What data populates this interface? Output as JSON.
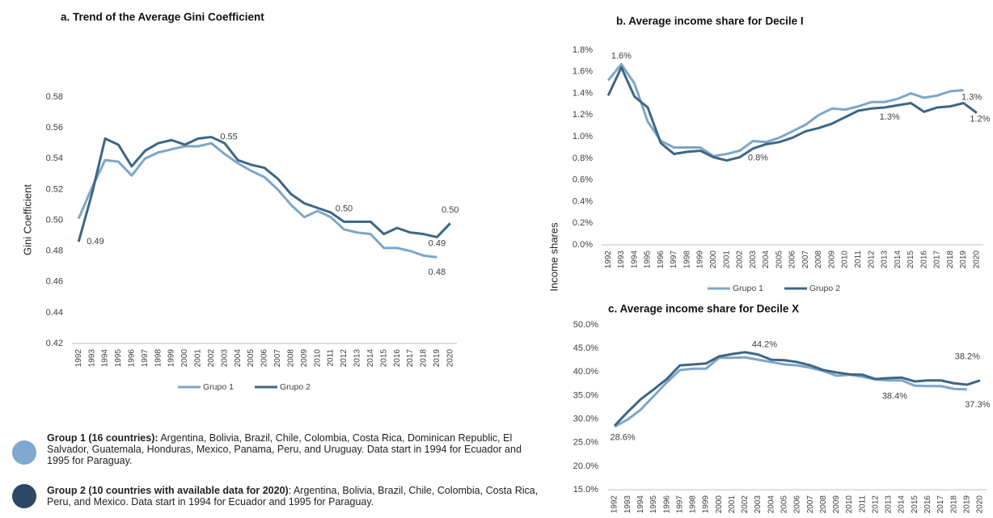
{
  "chart_data": [
    {
      "type": "line",
      "title": "a. Trend of the Average Gini Coefficient",
      "ylabel": "Gini Coefficient",
      "categories": [
        "1992",
        "1993",
        "1994",
        "1995",
        "1996",
        "1997",
        "1998",
        "1999",
        "2000",
        "2001",
        "2002",
        "2003",
        "2004",
        "2005",
        "2006",
        "2007",
        "2008",
        "2009",
        "2010",
        "2011",
        "2012",
        "2013",
        "2014",
        "2015",
        "2016",
        "2017",
        "2018",
        "2019",
        "2020"
      ],
      "series": [
        {
          "name": "Grupo 1",
          "color": "#7ea6c8",
          "values": [
            0.501,
            0.521,
            0.539,
            0.538,
            0.529,
            0.54,
            0.544,
            0.546,
            0.548,
            0.548,
            0.55,
            0.543,
            0.537,
            0.532,
            0.528,
            0.52,
            0.51,
            0.502,
            0.506,
            0.502,
            0.494,
            0.492,
            0.491,
            0.482,
            0.482,
            0.48,
            0.477,
            0.476,
            null
          ],
          "value_labels": [
            null,
            null,
            null,
            null,
            null,
            null,
            null,
            null,
            null,
            null,
            null,
            null,
            null,
            null,
            null,
            null,
            null,
            null,
            null,
            null,
            null,
            null,
            null,
            null,
            null,
            null,
            null,
            "0.48",
            null
          ]
        },
        {
          "name": "Grupo 2",
          "color": "#3e6685",
          "values": [
            0.486,
            0.517,
            0.553,
            0.549,
            0.535,
            0.545,
            0.55,
            0.552,
            0.549,
            0.553,
            0.554,
            0.55,
            0.539,
            0.536,
            0.534,
            0.527,
            0.517,
            0.511,
            0.508,
            0.505,
            0.499,
            0.499,
            0.499,
            0.491,
            0.495,
            0.492,
            0.491,
            0.489,
            0.498
          ],
          "value_labels": [
            "0.49",
            null,
            null,
            null,
            null,
            null,
            null,
            null,
            null,
            null,
            "0.55",
            null,
            null,
            null,
            null,
            null,
            null,
            null,
            null,
            null,
            "0.50",
            null,
            null,
            null,
            null,
            null,
            null,
            "0.49",
            "0.50"
          ]
        }
      ],
      "ylim": [
        0.42,
        0.58
      ],
      "yticks": [
        0.42,
        0.44,
        0.46,
        0.48,
        {
          "value": 0.5,
          "label": "0.50"
        },
        0.52,
        0.54,
        0.56,
        0.58
      ],
      "grid": false,
      "legend": "bottom"
    },
    {
      "type": "line",
      "title": "b. Average income share for Decile I",
      "ylabel": "Income shares",
      "categories": [
        "1992",
        "1993",
        "1994",
        "1995",
        "1996",
        "1997",
        "1998",
        "1999",
        "2000",
        "2001",
        "2002",
        "2003",
        "2004",
        "2005",
        "2006",
        "2007",
        "2008",
        "2009",
        "2010",
        "2011",
        "2012",
        "2013",
        "2014",
        "2015",
        "2016",
        "2017",
        "2018",
        "2019",
        "2020"
      ],
      "series": [
        {
          "name": "Grupo 1",
          "color": "#7ea6c8",
          "values": [
            1.52,
            1.67,
            1.49,
            1.14,
            0.96,
            0.9,
            0.9,
            0.9,
            0.82,
            0.84,
            0.87,
            0.96,
            0.95,
            0.99,
            1.05,
            1.11,
            1.2,
            1.26,
            1.25,
            1.28,
            1.32,
            1.32,
            1.35,
            1.4,
            1.36,
            1.38,
            1.42,
            1.43,
            null
          ]
        },
        {
          "name": "Grupo 2",
          "color": "#3e6685",
          "values": [
            1.38,
            1.64,
            1.37,
            1.27,
            0.94,
            0.84,
            0.86,
            0.87,
            0.81,
            0.78,
            0.81,
            0.89,
            0.93,
            0.95,
            0.99,
            1.05,
            1.08,
            1.12,
            1.18,
            1.24,
            1.26,
            1.27,
            1.29,
            1.31,
            1.23,
            1.27,
            1.28,
            1.31,
            1.22
          ],
          "value_labels": [
            null,
            "1.6%",
            null,
            null,
            null,
            null,
            null,
            null,
            null,
            null,
            "0.8%",
            null,
            null,
            null,
            null,
            null,
            null,
            null,
            null,
            null,
            "1.3%",
            null,
            null,
            null,
            null,
            null,
            null,
            "1.3%",
            "1.2%"
          ]
        }
      ],
      "ylim": [
        0,
        1.8
      ],
      "yticks": [
        {
          "value": 0,
          "label": "0.0%"
        },
        {
          "value": 0.2,
          "label": "0.2%"
        },
        {
          "value": 0.4,
          "label": "0.4%"
        },
        {
          "value": 0.6,
          "label": "0.6%"
        },
        {
          "value": 0.8,
          "label": "0.8%"
        },
        {
          "value": 1.0,
          "label": "1.0%"
        },
        {
          "value": 1.2,
          "label": "1.2%"
        },
        {
          "value": 1.4,
          "label": "1.4%"
        },
        {
          "value": 1.6,
          "label": "1.6%"
        },
        {
          "value": 1.8,
          "label": "1.8%"
        }
      ],
      "grid": false,
      "legend": "bottom"
    },
    {
      "type": "line",
      "title": "c. Average income share for Decile X",
      "categories": [
        "1992",
        "1993",
        "1994",
        "1995",
        "1996",
        "1997",
        "1998",
        "1999",
        "2000",
        "2001",
        "2002",
        "2003",
        "2004",
        "2005",
        "2006",
        "2007",
        "2008",
        "2009",
        "2010",
        "2011",
        "2012",
        "2013",
        "2014",
        "2015",
        "2016",
        "2017",
        "2018",
        "2019",
        "2020"
      ],
      "series": [
        {
          "name": "Grupo 1",
          "color": "#7ea6c8",
          "values": [
            28.4,
            29.9,
            32.0,
            34.9,
            37.8,
            40.4,
            40.7,
            40.7,
            43.0,
            43.0,
            43.1,
            42.6,
            42.1,
            41.6,
            41.4,
            40.9,
            40.2,
            39.2,
            39.4,
            39.0,
            38.4,
            38.2,
            38.2,
            37.1,
            37.0,
            37.0,
            36.4,
            36.3,
            null
          ],
          "value_labels": [
            null,
            null,
            null,
            null,
            null,
            null,
            null,
            null,
            null,
            null,
            null,
            null,
            null,
            null,
            null,
            null,
            null,
            null,
            null,
            null,
            "38.4%",
            null,
            null,
            null,
            null,
            null,
            null,
            null,
            null
          ]
        },
        {
          "name": "Grupo 2",
          "color": "#3e6685",
          "values": [
            28.6,
            31.5,
            34.2,
            36.3,
            38.5,
            41.4,
            41.6,
            41.8,
            43.3,
            43.8,
            44.2,
            43.7,
            42.6,
            42.5,
            42.1,
            41.4,
            40.4,
            39.9,
            39.5,
            39.4,
            38.5,
            38.7,
            38.8,
            38.0,
            38.2,
            38.2,
            37.6,
            37.3,
            38.2
          ],
          "value_labels": [
            "28.6%",
            null,
            null,
            null,
            null,
            null,
            null,
            null,
            null,
            null,
            "44.2%",
            null,
            null,
            null,
            null,
            null,
            null,
            null,
            null,
            null,
            null,
            null,
            null,
            null,
            null,
            null,
            null,
            "37.3%",
            "38.2%"
          ]
        }
      ],
      "ylim": [
        15,
        50
      ],
      "yticks": [
        {
          "value": 15,
          "label": "15.0%"
        },
        {
          "value": 20,
          "label": "20.0%"
        },
        {
          "value": 25,
          "label": "25.0%"
        },
        {
          "value": 30,
          "label": "30.0%"
        },
        {
          "value": 35,
          "label": "35.0%"
        },
        {
          "value": 40,
          "label": "40.0%"
        },
        {
          "value": 45,
          "label": "45.0%"
        },
        {
          "value": 50,
          "label": "50.0%"
        }
      ],
      "grid": false
    }
  ],
  "notes": [
    {
      "title": "Group 1 (16 countries):",
      "text": " Argentina, Bolivia, Brazil, Chile, Colombia, Costa Rica, Dominican Republic, El Salvador, Guatemala, Honduras, Mexico, Panama, Peru, and Uruguay. Data start in 1994 for Ecuador and 1995 for Paraguay."
    },
    {
      "title": "Group 2 (10 countries with available data for 2020)",
      "text": ": Argentina, Bolivia, Brazil, Chile, Colombia, Costa Rica, Peru, and Mexico. Data start in 1994 for Ecuador and 1995 for Paraguay."
    }
  ]
}
